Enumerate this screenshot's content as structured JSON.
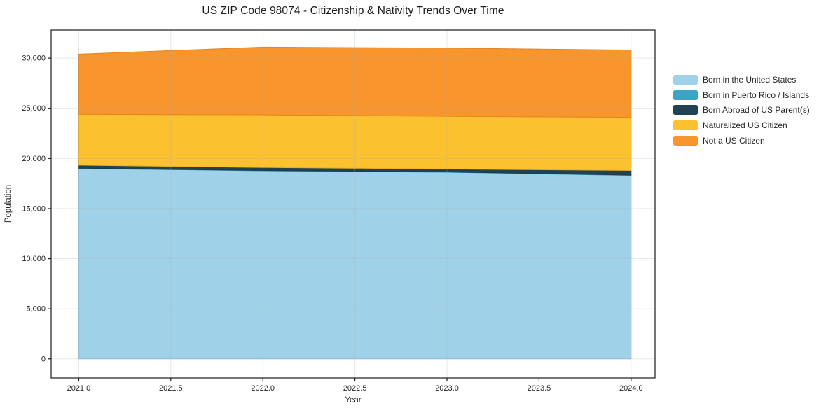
{
  "chart_data": {
    "type": "area",
    "stacked": true,
    "title": "US ZIP Code 98074 - Citizenship & Nativity Trends Over Time",
    "xlabel": "Year",
    "ylabel": "Population",
    "x": [
      2021,
      2022,
      2023,
      2024
    ],
    "series": [
      {
        "name": "Born in the United States",
        "color": "#9fd2e8",
        "values": [
          19000,
          18770,
          18630,
          18310
        ]
      },
      {
        "name": "Born in Puerto Rico / Islands",
        "color": "#3aa5c4",
        "values": [
          30,
          30,
          30,
          30
        ]
      },
      {
        "name": "Born Abroad of US Parent(s)",
        "color": "#1f4254",
        "values": [
          300,
          300,
          290,
          460
        ]
      },
      {
        "name": "Naturalized US Citizen",
        "color": "#fcc12f",
        "values": [
          5070,
          5250,
          5250,
          5300
        ]
      },
      {
        "name": "Not a US Citizen",
        "color": "#f8952c",
        "values": [
          6000,
          6750,
          6800,
          6700
        ]
      }
    ],
    "xlim": [
      2020.85,
      2024.13
    ],
    "ylim": [
      -1900,
      32800
    ],
    "x_ticks": {
      "values": [
        2021.0,
        2021.5,
        2022.0,
        2022.5,
        2023.0,
        2023.5,
        2024.0
      ],
      "labels": [
        "2021.0",
        "2021.5",
        "2022.0",
        "2022.5",
        "2023.0",
        "2023.5",
        "2024.0"
      ]
    },
    "y_ticks": {
      "values": [
        0,
        5000,
        10000,
        15000,
        20000,
        25000,
        30000
      ],
      "labels": [
        "0",
        "5,000",
        "10,000",
        "15,000",
        "20,000",
        "25,000",
        "30,000"
      ]
    },
    "grid": true,
    "legend_position": "right",
    "frame_color": "#1a1a1a",
    "grid_color": "#b0b0b0",
    "tick_label_color": "#262626"
  }
}
